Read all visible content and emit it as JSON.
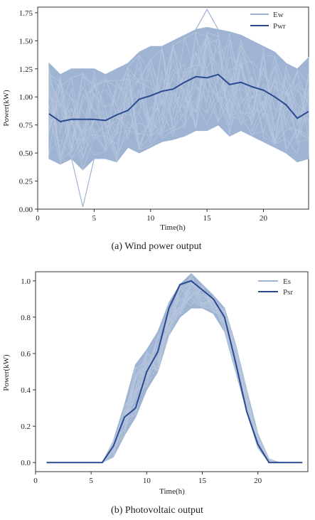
{
  "chart_data": [
    {
      "type": "line",
      "caption": "(a) Wind power output",
      "xlabel": "Time(h)",
      "ylabel": "Power(kW)",
      "xlim": [
        0,
        24
      ],
      "ylim": [
        0,
        1.8
      ],
      "xticks": [
        0,
        5,
        10,
        15,
        20
      ],
      "yticks": [
        0.0,
        0.25,
        0.5,
        0.75,
        1.0,
        1.25,
        1.5,
        1.75
      ],
      "ytick_labels": [
        "0.00",
        "0.25",
        "0.50",
        "0.75",
        "1.00",
        "1.25",
        "1.50",
        "1.75"
      ],
      "legend_position": "top-right",
      "x": [
        1,
        2,
        3,
        4,
        5,
        6,
        7,
        8,
        9,
        10,
        11,
        12,
        13,
        14,
        15,
        16,
        17,
        18,
        19,
        20,
        21,
        22,
        23,
        24
      ],
      "series": [
        {
          "name": "Ew",
          "kind": "band",
          "color": "#9fb4d3",
          "lower": [
            0.45,
            0.4,
            0.45,
            0.35,
            0.45,
            0.45,
            0.42,
            0.55,
            0.5,
            0.55,
            0.6,
            0.62,
            0.65,
            0.7,
            0.7,
            0.75,
            0.65,
            0.7,
            0.65,
            0.6,
            0.55,
            0.5,
            0.42,
            0.45
          ],
          "upper": [
            1.3,
            1.2,
            1.25,
            1.25,
            1.25,
            1.2,
            1.25,
            1.3,
            1.4,
            1.45,
            1.45,
            1.5,
            1.55,
            1.6,
            1.62,
            1.6,
            1.58,
            1.55,
            1.5,
            1.45,
            1.4,
            1.3,
            1.25,
            1.35
          ],
          "outliers": [
            {
              "x": 4,
              "y": 0.02
            },
            {
              "x": 15,
              "y": 1.78
            }
          ]
        },
        {
          "name": "Pwr",
          "kind": "line",
          "color": "#2a4a90",
          "values": [
            0.85,
            0.78,
            0.8,
            0.8,
            0.8,
            0.79,
            0.84,
            0.88,
            0.98,
            1.01,
            1.05,
            1.07,
            1.13,
            1.18,
            1.17,
            1.2,
            1.11,
            1.13,
            1.09,
            1.06,
            1.0,
            0.93,
            0.81,
            0.87
          ]
        }
      ]
    },
    {
      "type": "line",
      "caption": "(b) Photovoltaic output",
      "xlabel": "Time(h)",
      "ylabel": "Power(kW)",
      "xlim": [
        0,
        24.5
      ],
      "ylim": [
        -0.05,
        1.05
      ],
      "xticks": [
        0,
        5,
        10,
        15,
        20
      ],
      "yticks": [
        0.0,
        0.2,
        0.4,
        0.6,
        0.8,
        1.0
      ],
      "ytick_labels": [
        "0.0",
        "0.2",
        "0.4",
        "0.6",
        "0.8",
        "1.0"
      ],
      "legend_position": "top-right",
      "x": [
        1,
        2,
        3,
        4,
        5,
        6,
        7,
        8,
        9,
        10,
        11,
        12,
        13,
        14,
        15,
        16,
        17,
        18,
        19,
        20,
        21,
        22,
        23,
        24
      ],
      "series": [
        {
          "name": "Es",
          "kind": "band",
          "color": "#9fb4d3",
          "lower": [
            0,
            0,
            0,
            0,
            0,
            0,
            0.03,
            0.15,
            0.25,
            0.4,
            0.5,
            0.7,
            0.8,
            0.85,
            0.85,
            0.82,
            0.72,
            0.5,
            0.28,
            0.08,
            0,
            0,
            0,
            0
          ],
          "upper": [
            0,
            0,
            0,
            0,
            0,
            0,
            0.12,
            0.32,
            0.54,
            0.62,
            0.72,
            0.88,
            0.98,
            1.04,
            0.98,
            0.92,
            0.85,
            0.65,
            0.4,
            0.16,
            0.02,
            0,
            0,
            0
          ]
        },
        {
          "name": "Psr",
          "kind": "line",
          "color": "#2a4a90",
          "values": [
            0,
            0,
            0,
            0,
            0,
            0,
            0.09,
            0.25,
            0.3,
            0.5,
            0.61,
            0.85,
            0.98,
            1.0,
            0.95,
            0.9,
            0.8,
            0.55,
            0.28,
            0.1,
            0,
            0,
            0,
            0
          ]
        }
      ]
    }
  ]
}
